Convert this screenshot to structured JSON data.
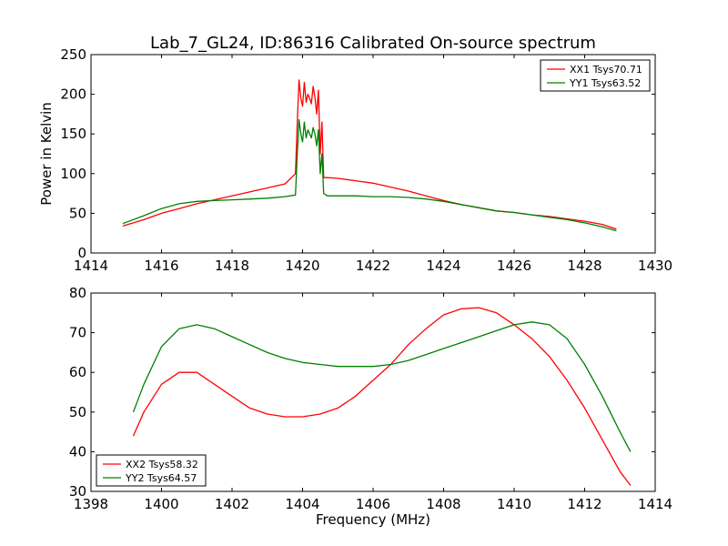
{
  "chart_data": [
    {
      "type": "line",
      "title": "Lab_7_GL24, ID:86316 Calibrated On-source spectrum",
      "xlabel": "",
      "ylabel": "Power in Kelvin",
      "xlim": [
        1414,
        1430
      ],
      "ylim": [
        0,
        250
      ],
      "xticks": [
        "1414",
        "1416",
        "1418",
        "1420",
        "1422",
        "1424",
        "1426",
        "1428",
        "1430"
      ],
      "yticks": [
        "0",
        "50",
        "100",
        "150",
        "200",
        "250"
      ],
      "grid": false,
      "legend_position": "top-right",
      "series": [
        {
          "name": "XX1 Tsys70.71",
          "color": "#ff0000",
          "x": [
            14.9,
            15.5,
            16.0,
            16.5,
            17.0,
            17.5,
            18.0,
            18.5,
            19.0,
            19.5,
            19.8,
            19.85,
            19.9,
            19.95,
            20.0,
            20.05,
            20.1,
            20.15,
            20.2,
            20.25,
            20.3,
            20.35,
            20.4,
            20.45,
            20.5,
            20.55,
            20.6,
            20.7,
            21.0,
            21.5,
            22.0,
            22.5,
            23.0,
            23.5,
            24.0,
            24.5,
            25.0,
            25.5,
            26.0,
            26.5,
            27.0,
            27.5,
            28.0,
            28.5,
            28.9
          ],
          "y": [
            34,
            42,
            50,
            56,
            62,
            67,
            72,
            77,
            82,
            87,
            100,
            165,
            218,
            195,
            185,
            215,
            190,
            200,
            195,
            188,
            210,
            196,
            175,
            205,
            125,
            165,
            95,
            95,
            94,
            91,
            88,
            83,
            78,
            72,
            66,
            61,
            57,
            53,
            51,
            48,
            46,
            43,
            40,
            36,
            30
          ]
        },
        {
          "name": "YY1 Tsys63.52",
          "color": "#008000",
          "x": [
            14.9,
            15.5,
            16.0,
            16.5,
            17.0,
            17.5,
            18.0,
            18.5,
            19.0,
            19.5,
            19.8,
            19.85,
            19.9,
            19.95,
            20.0,
            20.05,
            20.1,
            20.15,
            20.2,
            20.25,
            20.3,
            20.35,
            20.4,
            20.45,
            20.5,
            20.55,
            20.6,
            20.7,
            21.0,
            21.5,
            22.0,
            22.5,
            23.0,
            23.5,
            24.0,
            24.5,
            25.0,
            25.5,
            26.0,
            26.5,
            27.0,
            27.5,
            28.0,
            28.5,
            28.9
          ],
          "y": [
            37,
            47,
            56,
            62,
            65,
            66,
            67,
            68,
            69,
            71,
            73,
            125,
            168,
            150,
            140,
            165,
            145,
            155,
            150,
            145,
            158,
            150,
            135,
            155,
            100,
            125,
            75,
            72,
            72,
            72,
            71,
            71,
            70,
            68,
            65,
            61,
            57,
            53,
            51,
            48,
            45,
            42,
            38,
            33,
            28
          ]
        }
      ]
    },
    {
      "type": "line",
      "title": "",
      "xlabel": "Frequency (MHz)",
      "ylabel": "",
      "xlim": [
        1398,
        1414
      ],
      "ylim": [
        30,
        80
      ],
      "xticks": [
        "1398",
        "1400",
        "1402",
        "1404",
        "1406",
        "1408",
        "1410",
        "1412",
        "1414"
      ],
      "yticks": [
        "30",
        "40",
        "50",
        "60",
        "70",
        "80"
      ],
      "grid": false,
      "legend_position": "bottom-left",
      "series": [
        {
          "name": "XX2 Tsys58.32",
          "color": "#ff0000",
          "x": [
            1399.2,
            1399.5,
            1400.0,
            1400.5,
            1401.0,
            1401.5,
            1402.0,
            1402.5,
            1403.0,
            1403.5,
            1404.0,
            1404.5,
            1405.0,
            1405.5,
            1406.0,
            1406.5,
            1407.0,
            1407.5,
            1408.0,
            1408.5,
            1409.0,
            1409.5,
            1410.0,
            1410.5,
            1411.0,
            1411.5,
            1412.0,
            1412.5,
            1413.0,
            1413.3
          ],
          "y": [
            44,
            50,
            57,
            60,
            60,
            57,
            54,
            51,
            49.5,
            48.8,
            48.8,
            49.5,
            51,
            54,
            58,
            62,
            67,
            71,
            74.5,
            76,
            76.3,
            75,
            72,
            68.5,
            64,
            58,
            51,
            43,
            35,
            31.5
          ]
        },
        {
          "name": "YY2 Tsys64.57",
          "color": "#008000",
          "x": [
            1399.2,
            1399.5,
            1400.0,
            1400.5,
            1401.0,
            1401.5,
            1402.0,
            1402.5,
            1403.0,
            1403.5,
            1404.0,
            1404.5,
            1405.0,
            1405.5,
            1406.0,
            1406.5,
            1407.0,
            1407.5,
            1408.0,
            1408.5,
            1409.0,
            1409.5,
            1410.0,
            1410.5,
            1411.0,
            1411.5,
            1412.0,
            1412.5,
            1413.0,
            1413.3
          ],
          "y": [
            50,
            57,
            66.5,
            71,
            72,
            71,
            69,
            67,
            65,
            63.5,
            62.5,
            62,
            61.5,
            61.5,
            61.5,
            62,
            63,
            64.5,
            66,
            67.5,
            69,
            70.5,
            72,
            72.7,
            72,
            68.5,
            62,
            54,
            45,
            40
          ]
        }
      ]
    }
  ]
}
